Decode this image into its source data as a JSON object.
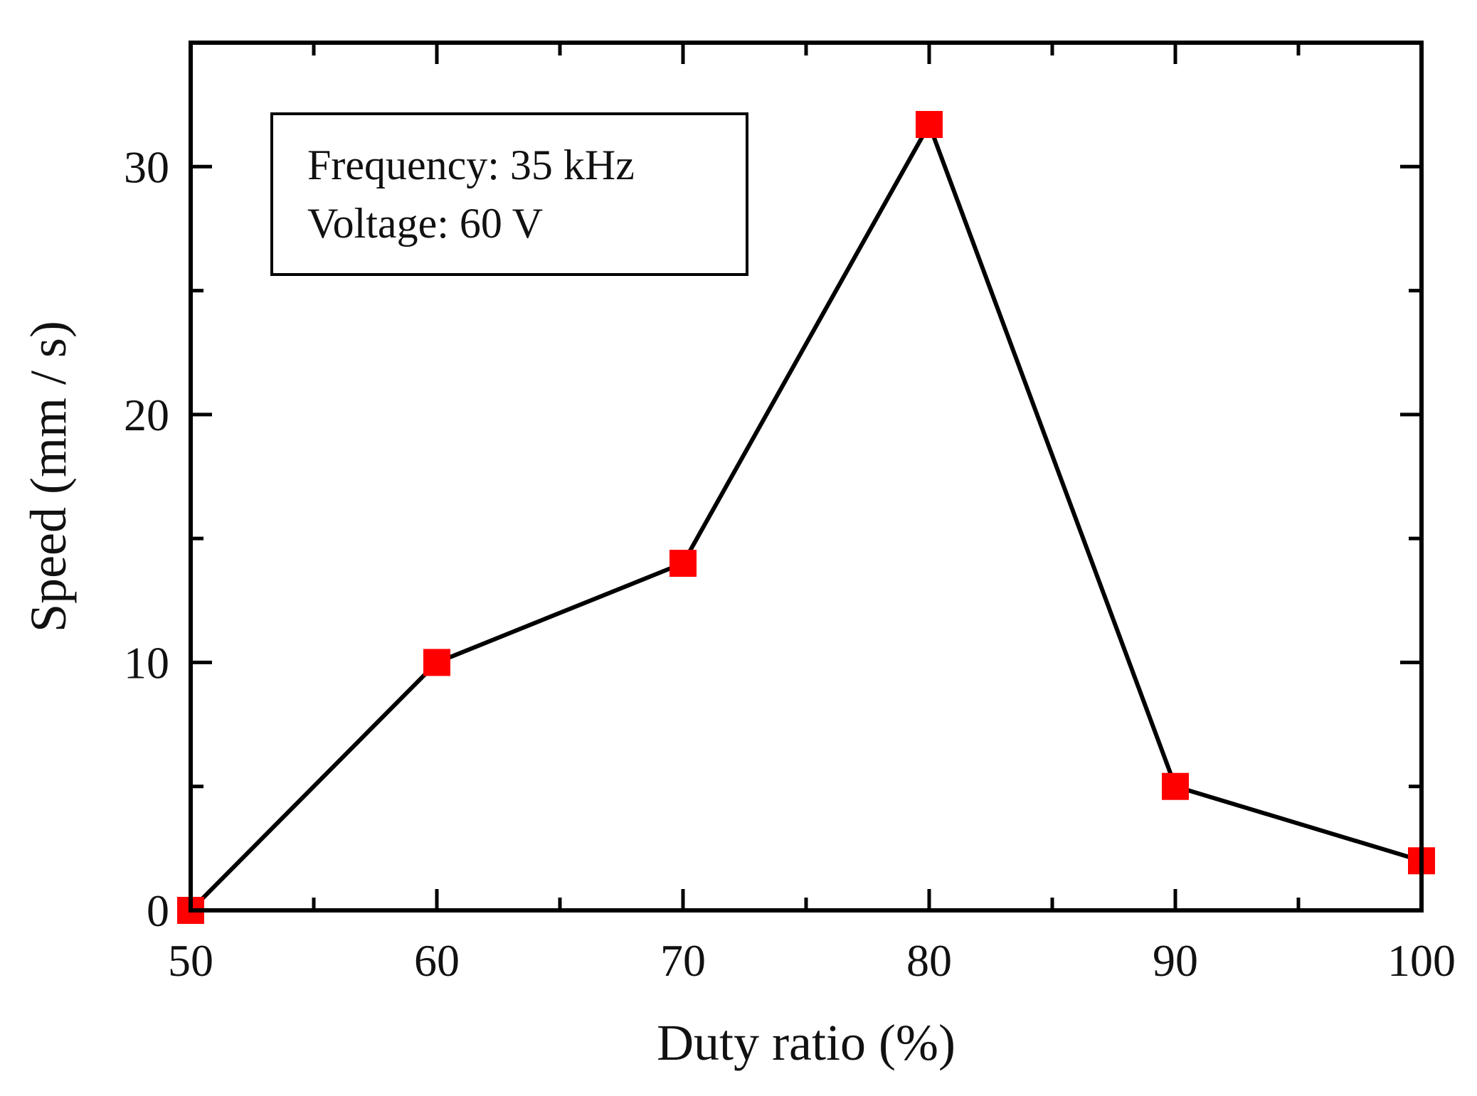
{
  "chart_data": {
    "type": "line",
    "title": "",
    "xlabel": "Duty ratio (%)",
    "ylabel": "Speed (mm / s)",
    "xlim": [
      50,
      100
    ],
    "ylim": [
      0,
      35
    ],
    "xticks": [
      50,
      60,
      70,
      80,
      90,
      100
    ],
    "xtick_labels": [
      "50",
      "60",
      "70",
      "80",
      "90",
      "100"
    ],
    "yticks": [
      0,
      10,
      20,
      30
    ],
    "ytick_labels": [
      "0",
      "10",
      "20",
      "30"
    ],
    "x_minor_step": 5,
    "y_minor_step": 5,
    "grid": false,
    "series": [
      {
        "name": "Speed",
        "line_color": "#000000",
        "marker": "square",
        "marker_color": "#ff0000",
        "x": [
          50,
          60,
          70,
          80,
          90,
          100
        ],
        "y": [
          0,
          10,
          14,
          31.7,
          5,
          2
        ]
      }
    ],
    "annotation": {
      "position": "top-left",
      "lines": [
        "Frequency: 35 kHz",
        "Voltage: 60 V"
      ]
    }
  }
}
